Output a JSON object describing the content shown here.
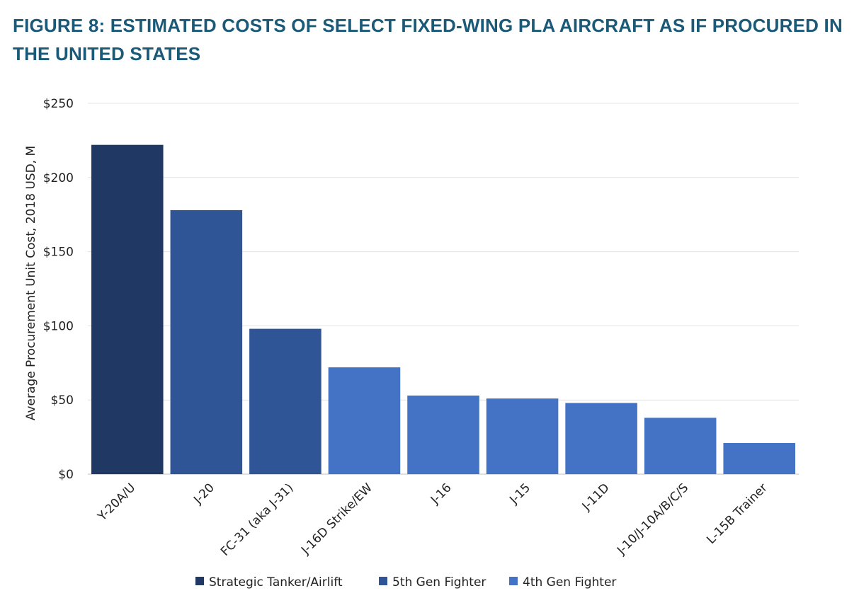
{
  "chart_data": {
    "type": "bar",
    "title": "FIGURE 8: ESTIMATED COSTS OF SELECT FIXED-WING PLA AIRCRAFT AS IF PROCURED IN THE UNITED STATES",
    "xlabel": "",
    "ylabel": "Average Procurement Unit Cost, 2018 USD, M",
    "ylim": [
      0,
      250
    ],
    "yticks": [
      0,
      50,
      100,
      150,
      200,
      250
    ],
    "ytick_labels": [
      "$0",
      "$50",
      "$100",
      "$150",
      "$200",
      "$250"
    ],
    "categories": [
      "Y-20A/U",
      "J-20",
      "FC-31 (aka J-31)",
      "J-16D Strike/EW",
      "J-16",
      "J-15",
      "J-11D",
      "J-10/J-10A/B/C/S",
      "L-15B Trainer"
    ],
    "values": [
      222,
      178,
      98,
      72,
      53,
      51,
      48,
      38,
      21
    ],
    "category_groups": [
      0,
      1,
      1,
      2,
      2,
      2,
      2,
      2,
      2
    ],
    "legend": {
      "position": "bottom",
      "entries": [
        {
          "name": "Strategic Tanker/Airlift",
          "color": "#203864"
        },
        {
          "name": "5th Gen Fighter",
          "color": "#2f5597"
        },
        {
          "name": "4th Gen Fighter",
          "color": "#4472c4"
        }
      ]
    },
    "grid": true
  }
}
